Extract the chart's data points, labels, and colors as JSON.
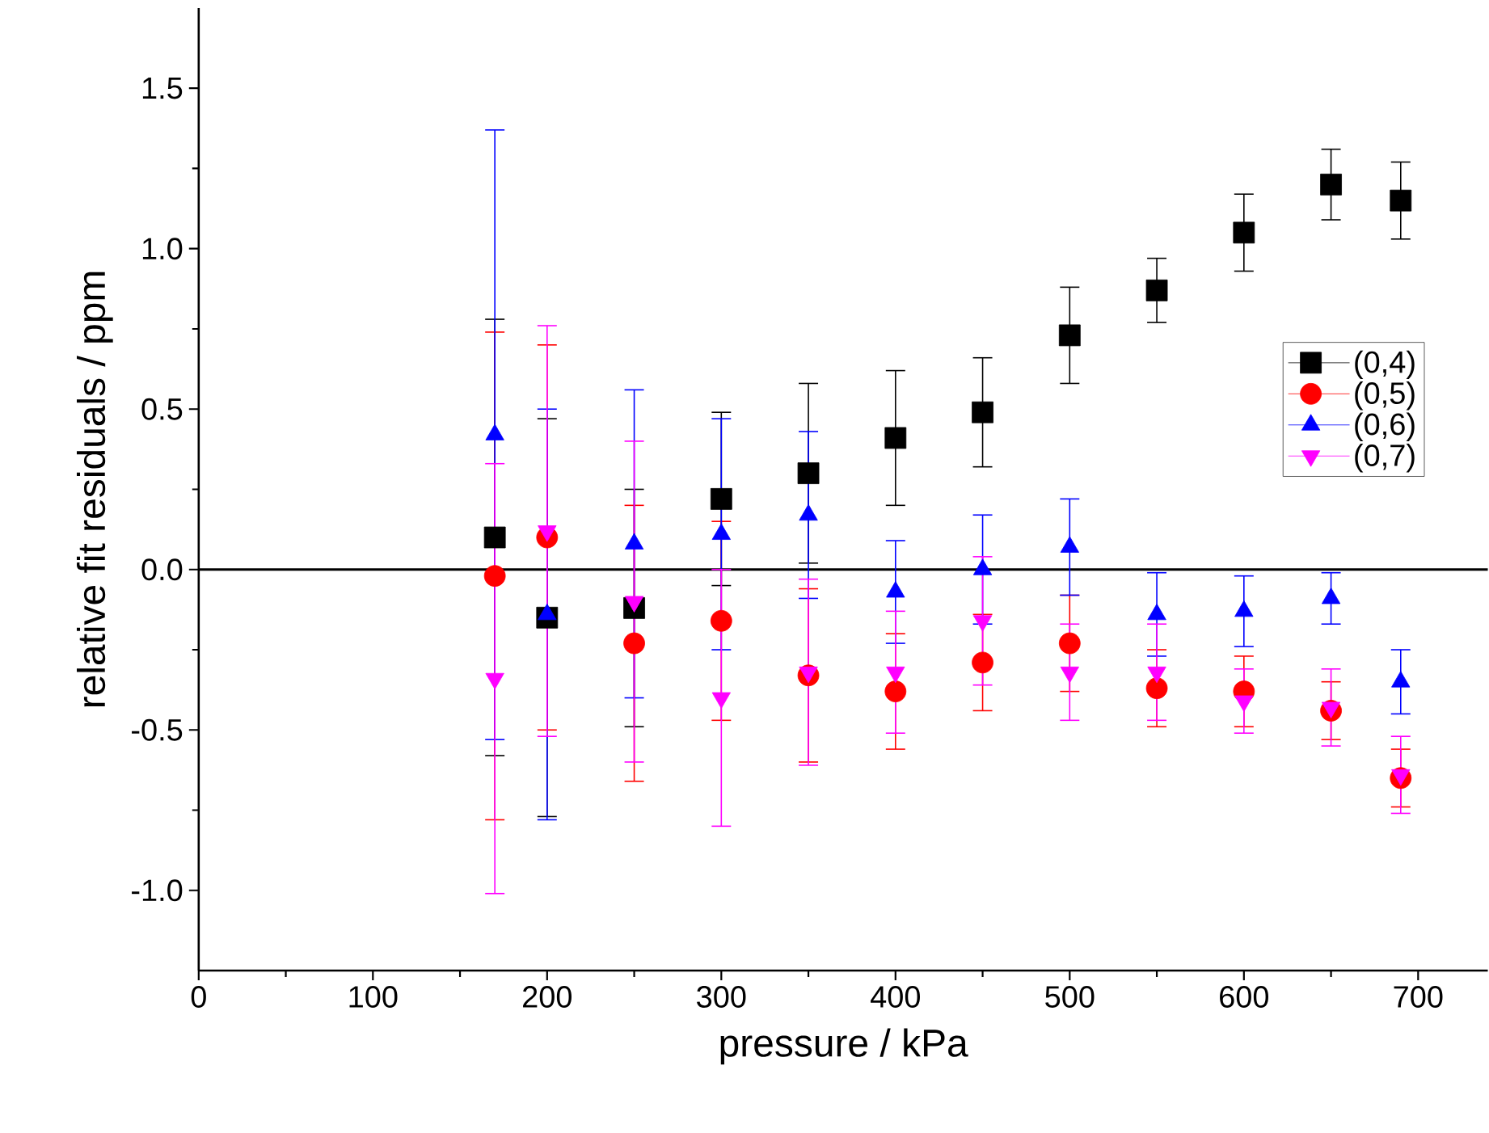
{
  "chart_data": {
    "type": "scatter",
    "xlabel": "pressure / kPa",
    "ylabel": "relative fit residuals / ppm",
    "x": [
      170,
      200,
      250,
      300,
      350,
      400,
      450,
      500,
      550,
      600,
      650,
      690
    ],
    "series": [
      {
        "name": "(0,4)",
        "color": "#000000",
        "marker": "square",
        "values": [
          0.1,
          -0.15,
          -0.12,
          0.22,
          0.3,
          0.41,
          0.49,
          0.73,
          0.87,
          1.05,
          1.2,
          1.15
        ],
        "errors": [
          0.68,
          0.62,
          0.37,
          0.27,
          0.28,
          0.21,
          0.17,
          0.15,
          0.1,
          0.12,
          0.11,
          0.12
        ]
      },
      {
        "name": "(0,5)",
        "color": "#ff0000",
        "marker": "circle",
        "values": [
          -0.02,
          0.1,
          -0.23,
          -0.16,
          -0.33,
          -0.38,
          -0.29,
          -0.23,
          -0.37,
          -0.38,
          -0.44,
          -0.65
        ],
        "errors": [
          0.76,
          0.6,
          0.43,
          0.31,
          0.27,
          0.18,
          0.15,
          0.15,
          0.12,
          0.11,
          0.09,
          0.09
        ]
      },
      {
        "name": "(0,6)",
        "color": "#0000ff",
        "marker": "triangle",
        "values": [
          0.42,
          -0.14,
          0.08,
          0.11,
          0.17,
          -0.07,
          0.0,
          0.07,
          -0.14,
          -0.13,
          -0.09,
          -0.35
        ],
        "errors": [
          0.95,
          0.64,
          0.48,
          0.36,
          0.26,
          0.16,
          0.17,
          0.15,
          0.13,
          0.11,
          0.08,
          0.1
        ]
      },
      {
        "name": "(0,7)",
        "color": "#ff00ff",
        "marker": "triangle-down",
        "values": [
          -0.34,
          0.12,
          -0.1,
          -0.4,
          -0.32,
          -0.32,
          -0.16,
          -0.32,
          -0.32,
          -0.41,
          -0.43,
          -0.64
        ],
        "errors": [
          0.67,
          0.64,
          0.5,
          0.4,
          0.29,
          0.19,
          0.2,
          0.15,
          0.15,
          0.1,
          0.12,
          0.12
        ]
      }
    ],
    "xlim": [
      0,
      740
    ],
    "ylim": [
      -1.25,
      1.75
    ],
    "xticks": [
      0,
      100,
      200,
      300,
      400,
      500,
      600,
      700
    ],
    "yticks": [
      {
        "value": -1.0,
        "label": "-1.0"
      },
      {
        "value": -0.5,
        "label": "-0.5"
      },
      {
        "value": 0,
        "label": "0.0"
      },
      {
        "value": 0.5,
        "label": "0.5"
      },
      {
        "value": 1.0,
        "label": "1.0"
      },
      {
        "value": 1.5,
        "label": "1.5"
      }
    ],
    "ref_lines": [
      {
        "axis": "y",
        "value": 0,
        "color": "#000000"
      }
    ],
    "legend": "right",
    "grid": false
  }
}
